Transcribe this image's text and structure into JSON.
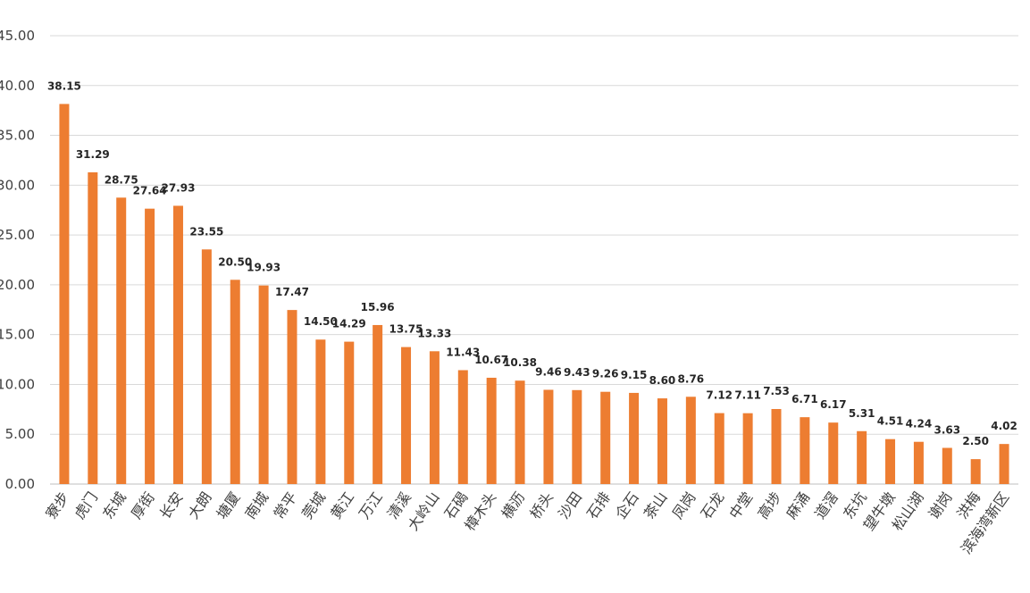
{
  "chart_data": {
    "type": "bar",
    "title": "",
    "xlabel": "",
    "ylabel": "",
    "ylim": [
      0,
      45
    ],
    "yticks": [
      "0.00",
      "5.00",
      "10.00",
      "15.00",
      "20.00",
      "25.00",
      "30.00",
      "35.00",
      "40.00",
      "45.00"
    ],
    "grid": true,
    "bar_color": "#ed7d31",
    "categories": [
      "寮步",
      "虎门",
      "东城",
      "厚街",
      "长安",
      "大朗",
      "塘厦",
      "南城",
      "常平",
      "莞城",
      "黄江",
      "万江",
      "清溪",
      "大岭山",
      "石碣",
      "樟木头",
      "横沥",
      "桥头",
      "沙田",
      "石排",
      "企石",
      "茶山",
      "凤岗",
      "石龙",
      "中堂",
      "高埗",
      "麻涌",
      "道滘",
      "东坑",
      "望牛墩",
      "松山湖",
      "谢岗",
      "洪梅",
      "滨海湾新区"
    ],
    "values": [
      38.15,
      31.29,
      28.75,
      27.64,
      27.93,
      23.55,
      20.5,
      19.93,
      17.47,
      14.5,
      14.29,
      15.96,
      13.75,
      13.33,
      11.43,
      10.67,
      10.38,
      9.46,
      9.43,
      9.26,
      9.15,
      8.6,
      8.76,
      7.12,
      7.11,
      7.53,
      6.71,
      6.17,
      5.31,
      4.51,
      4.24,
      3.63,
      2.5,
      4.02
    ],
    "value_labels": [
      "38.15",
      "31.29",
      "28.75",
      "27.64",
      "27.93",
      "23.55",
      "20.50",
      "19.93",
      "17.47",
      "14.50",
      "14.29",
      "15.96",
      "13.75",
      "13.33",
      "11.43",
      "10.67",
      "10.38",
      "9.46",
      "9.43",
      "9.26",
      "9.15",
      "8.60",
      "8.76",
      "7.12",
      "7.11",
      "7.53",
      "6.71",
      "6.17",
      "5.31",
      "4.51",
      "4.24",
      "3.63",
      "2.50",
      "4.02"
    ]
  }
}
